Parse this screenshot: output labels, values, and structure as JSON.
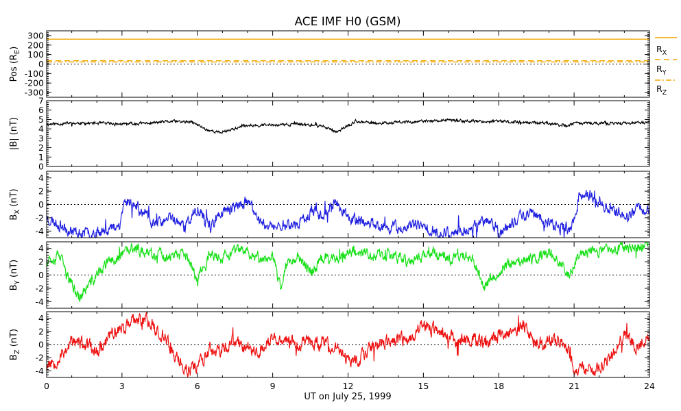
{
  "chart_data": {
    "type": "line",
    "title": "ACE IMF H0 (GSM)",
    "xlabel": "UT on July 25, 1999",
    "xlim": [
      0,
      24
    ],
    "xticks": [
      "0",
      "3",
      "6",
      "9",
      "12",
      "15",
      "18",
      "21",
      "24"
    ],
    "colors": {
      "black": "#000000",
      "blue": "#2020e0",
      "green": "#18e018",
      "red": "#ee1010",
      "orange": "#f2a600"
    },
    "panels": [
      {
        "id": "pos",
        "ylabel": "Pos (R",
        "ylabel_sub": "E",
        "ylabel_end": ")",
        "ylim": [
          -350,
          350
        ],
        "ytick_labels": [
          "300",
          "200",
          "100",
          "0",
          "-100",
          "-200",
          "-300"
        ],
        "yticks": [
          300,
          200,
          100,
          0,
          -100,
          -200,
          -300
        ],
        "zero_line": true,
        "legend": [
          {
            "base": "R",
            "sub": "X",
            "style": "solid"
          },
          {
            "base": "R",
            "sub": "Y",
            "style": "dashed"
          },
          {
            "base": "R",
            "sub": "Z",
            "style": "dashdot"
          }
        ],
        "series": [
          {
            "key": "Rx",
            "color": "orange",
            "style": "solid",
            "constant": 262
          },
          {
            "key": "Ry",
            "color": "orange",
            "style": "dashed",
            "constant": 35
          },
          {
            "key": "Rz",
            "color": "orange",
            "style": "dashdot",
            "constant": 22
          }
        ]
      },
      {
        "id": "bmag",
        "ylabel": "|B| (nT)",
        "ylim": [
          0,
          7
        ],
        "ytick_labels": [
          "7",
          "6",
          "5",
          "4",
          "3",
          "2",
          "1",
          "0"
        ],
        "yticks": [
          7,
          6,
          5,
          4,
          3,
          2,
          1,
          0
        ],
        "zero_line": false,
        "series": [
          {
            "key": "B",
            "color": "black",
            "x": [
              0,
              1,
              2,
              3,
              4,
              5,
              5.8,
              6.4,
              6.9,
              7.3,
              8,
              9,
              10,
              11,
              11.5,
              12,
              12.3,
              13,
              14,
              15,
              16,
              17,
              18,
              19,
              20,
              20.7,
              21,
              22,
              23,
              24
            ],
            "y": [
              4.5,
              4.6,
              4.6,
              4.5,
              4.6,
              4.8,
              4.7,
              3.9,
              3.6,
              3.9,
              4.4,
              4.4,
              4.5,
              4.3,
              3.7,
              4.3,
              4.8,
              4.6,
              4.7,
              4.8,
              4.9,
              4.8,
              4.8,
              4.7,
              4.6,
              4.3,
              4.6,
              4.6,
              4.6,
              4.7
            ],
            "noise": 0.12,
            "seed": 11
          }
        ]
      },
      {
        "id": "bx",
        "ylabel": "B",
        "ylabel_sub": "X",
        "ylabel_end": " (nT)",
        "ylim": [
          -5,
          5
        ],
        "ytick_labels": [
          "4",
          "2",
          "0",
          "-2",
          "-4"
        ],
        "yticks": [
          4,
          2,
          0,
          -2,
          -4
        ],
        "zero_line": true,
        "series": [
          {
            "key": "Bx",
            "color": "blue",
            "x": [
              0,
              0.5,
              1,
              1.5,
              2,
              2.5,
              2.9,
              3.1,
              3.5,
              4,
              4.5,
              5,
              5.5,
              6,
              6.5,
              7,
              7.5,
              8,
              8.5,
              9,
              9.5,
              10,
              10.5,
              11,
              11.5,
              12,
              12.5,
              13,
              13.5,
              14,
              14.5,
              15,
              15.5,
              16,
              16.5,
              17,
              17.5,
              18,
              18.5,
              19,
              19.5,
              20,
              20.5,
              20.9,
              21.2,
              21.5,
              22,
              22.5,
              23,
              23.5,
              24
            ],
            "y": [
              -2,
              -3,
              -4,
              -4.5,
              -4,
              -3.7,
              -3,
              0.5,
              0,
              -2,
              -3,
              -2,
              -3.5,
              -0.5,
              -3.5,
              -1,
              -0.5,
              0.3,
              -2.5,
              -3.5,
              -3,
              -3,
              -1,
              -1.5,
              0.5,
              -2,
              -2.5,
              -3,
              -3.3,
              -3.5,
              -3.2,
              -3.5,
              -4,
              -4.3,
              -4,
              -3.5,
              -2,
              -4.5,
              -3,
              -1.5,
              -1.5,
              -3,
              -3.5,
              -3.5,
              1.2,
              1.5,
              0.5,
              -1,
              -1.5,
              -1,
              -0.5
            ],
            "noise": 0.7,
            "seed": 23
          }
        ]
      },
      {
        "id": "by",
        "ylabel": "B",
        "ylabel_sub": "Y",
        "ylabel_end": " (nT)",
        "ylim": [
          -5,
          5
        ],
        "ytick_labels": [
          "4",
          "2",
          "0",
          "-2",
          "-4"
        ],
        "yticks": [
          4,
          2,
          0,
          -2,
          -4
        ],
        "zero_line": true,
        "series": [
          {
            "key": "By",
            "color": "green",
            "x": [
              0,
              0.5,
              0.8,
              1.3,
              2,
              2.5,
              3,
              3.5,
              4,
              4.5,
              5,
              5.5,
              6,
              6.5,
              7,
              7.5,
              8,
              8.5,
              9,
              9.3,
              9.6,
              10,
              10.5,
              11,
              11.5,
              12,
              12.5,
              13,
              13.5,
              14,
              14.5,
              15,
              15.5,
              16,
              16.5,
              17,
              17.4,
              17.8,
              18.2,
              18.7,
              19,
              19.5,
              20,
              20.5,
              20.8,
              21.2,
              21.6,
              22,
              22.5,
              23,
              23.5,
              24
            ],
            "y": [
              2.5,
              3,
              0,
              -3.5,
              0,
              2,
              3,
              4,
              3.5,
              3,
              2.5,
              3,
              -0.5,
              3,
              2.5,
              3.5,
              3.5,
              2.5,
              3,
              -2,
              2,
              3,
              0.5,
              2.5,
              2.5,
              3.5,
              3.5,
              3,
              3,
              2.5,
              2,
              3,
              3.5,
              2.5,
              3,
              2.5,
              -2,
              0,
              1,
              2.5,
              2,
              2.5,
              3.5,
              2,
              0,
              3,
              3.5,
              3.5,
              4,
              4,
              4.3,
              4.5
            ],
            "noise": 0.7,
            "seed": 37
          }
        ]
      },
      {
        "id": "bz",
        "ylabel": "B",
        "ylabel_sub": "Z",
        "ylabel_end": " (nT)",
        "ylim": [
          -5,
          5
        ],
        "ytick_labels": [
          "4",
          "2",
          "0",
          "-2",
          "-4"
        ],
        "yticks": [
          4,
          2,
          0,
          -2,
          -4
        ],
        "zero_line": true,
        "series": [
          {
            "key": "Bz",
            "color": "red",
            "x": [
              0,
              0.5,
              1,
              1.5,
              2,
              2.5,
              3,
              3.5,
              4,
              4.5,
              5,
              5.5,
              6,
              6.5,
              7,
              7.5,
              8,
              8.5,
              9,
              9.5,
              10,
              10.5,
              11,
              11.5,
              12,
              12.5,
              13,
              13.5,
              14,
              14.5,
              15,
              15.5,
              16,
              16.5,
              17,
              17.5,
              18,
              18.5,
              19,
              19.5,
              20,
              20.5,
              21,
              21.5,
              22,
              22.5,
              23,
              23.5,
              24
            ],
            "y": [
              -3,
              -2,
              0.5,
              0,
              -1,
              1.5,
              2.5,
              3.5,
              3.8,
              2,
              -1,
              -4,
              -3,
              -1,
              -1,
              0.5,
              -0.5,
              -1,
              1,
              0.5,
              0,
              0.5,
              0,
              -0.5,
              -2.5,
              -2,
              0,
              0.5,
              0.5,
              1,
              3,
              2,
              1,
              0.5,
              1,
              0,
              1.5,
              2,
              3,
              0.5,
              0,
              1,
              -3.5,
              -4,
              -3.5,
              -1.5,
              1.5,
              0,
              1
            ],
            "noise": 0.85,
            "seed": 53
          }
        ]
      }
    ]
  }
}
